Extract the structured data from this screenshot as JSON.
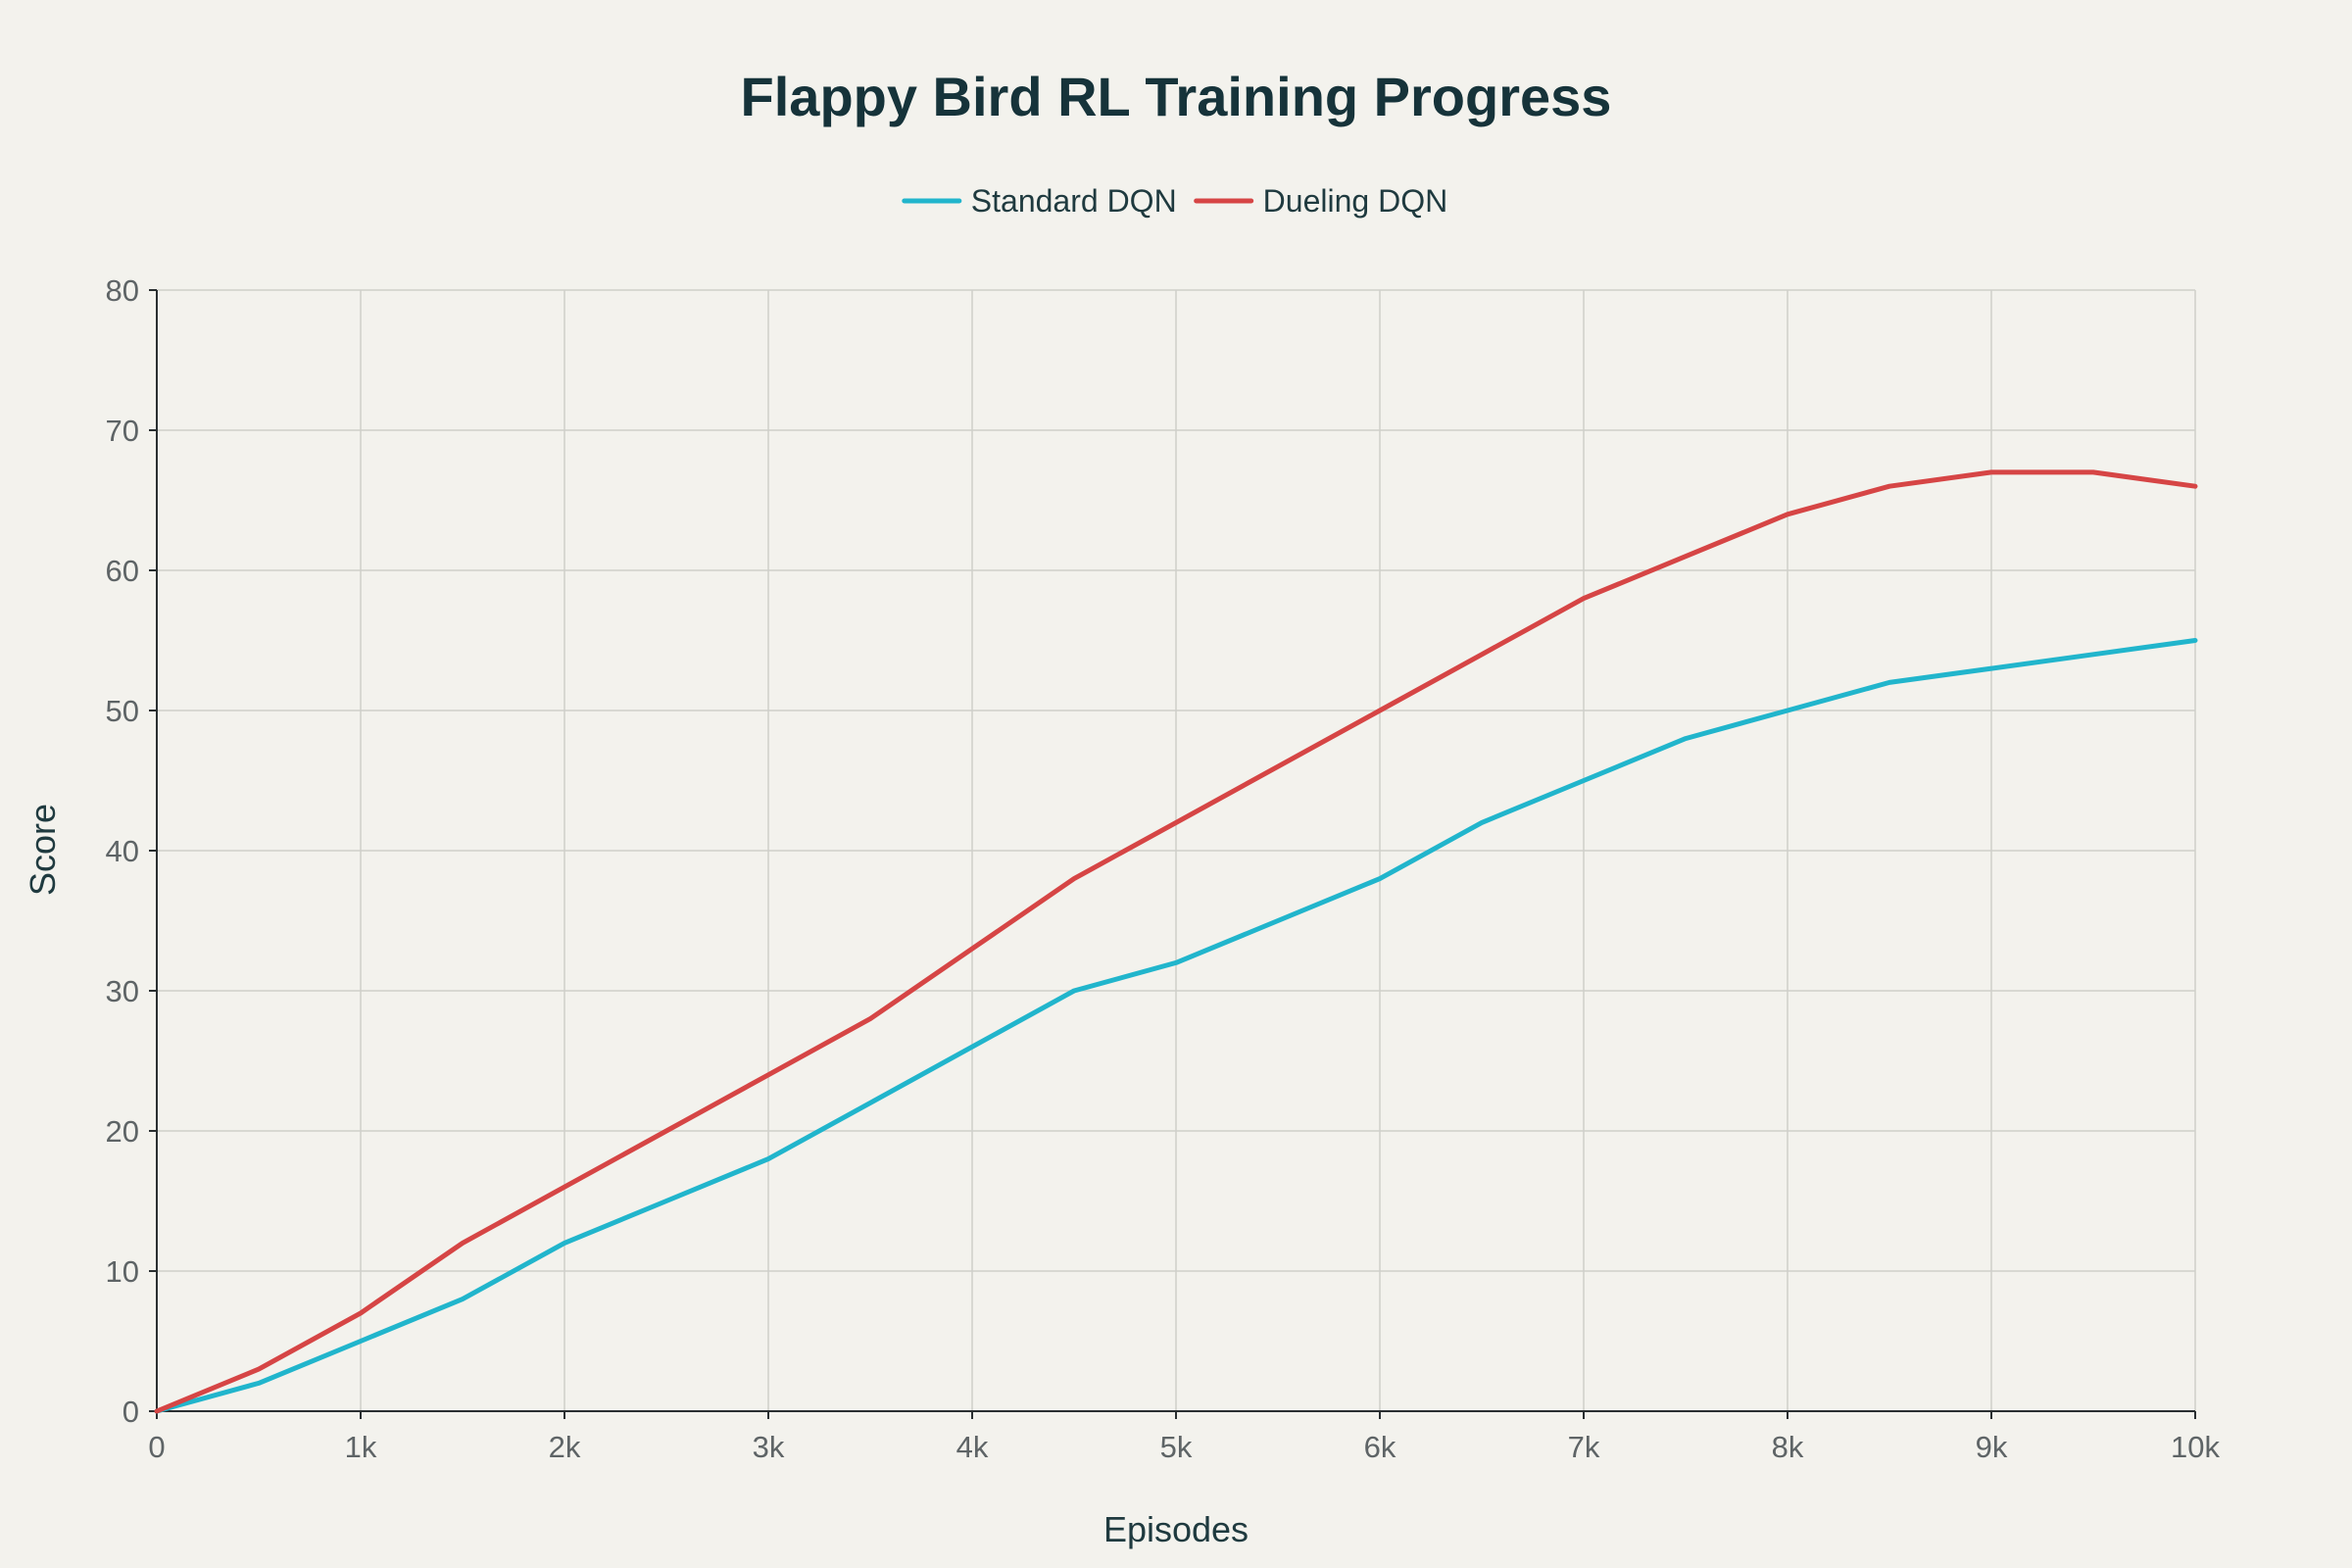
{
  "chart_data": {
    "type": "line",
    "title": "Flappy Bird RL Training Progress",
    "xlabel": "Episodes",
    "ylabel": "Score",
    "xlim": [
      0,
      10000
    ],
    "ylim": [
      0,
      80
    ],
    "x_ticks": [
      0,
      1000,
      2000,
      3000,
      4000,
      5000,
      6000,
      7000,
      8000,
      9000,
      10000
    ],
    "x_tick_labels": [
      "0",
      "1k",
      "2k",
      "3k",
      "4k",
      "5k",
      "6k",
      "7k",
      "8k",
      "9k",
      "10k"
    ],
    "y_ticks": [
      0,
      10,
      20,
      30,
      40,
      50,
      60,
      70,
      80
    ],
    "y_tick_labels": [
      "0",
      "10",
      "20",
      "30",
      "40",
      "50",
      "60",
      "70",
      "80"
    ],
    "grid": true,
    "legend_position": "top-center",
    "x": [
      0,
      500,
      1000,
      1500,
      2000,
      2500,
      3000,
      3500,
      4000,
      4500,
      5000,
      5500,
      6000,
      6500,
      7000,
      7500,
      8000,
      8500,
      9000,
      9500,
      10000
    ],
    "series": [
      {
        "name": "Standard DQN",
        "color": "#21b5cc",
        "values": [
          0,
          2,
          5,
          8,
          12,
          15,
          18,
          22,
          26,
          30,
          32,
          35,
          38,
          42,
          45,
          48,
          50,
          52,
          53,
          54,
          55
        ]
      },
      {
        "name": "Dueling DQN",
        "color": "#d64545",
        "values": [
          0,
          3,
          7,
          12,
          16,
          20,
          24,
          28,
          33,
          38,
          42,
          46,
          50,
          54,
          58,
          61,
          64,
          66,
          67,
          67,
          66
        ]
      }
    ]
  }
}
